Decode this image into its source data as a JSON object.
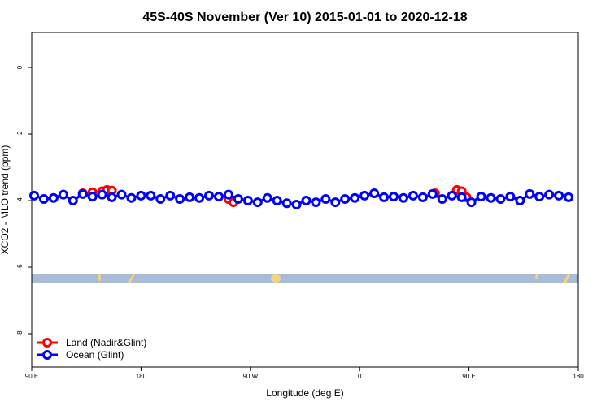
{
  "chart_data": {
    "type": "line",
    "title": "45S-40S November (Ver 10)   2015-01-01 to 2020-12-18",
    "x_label": "Longitude (deg E)",
    "y_label": "XCO2 - MLO trend (ppm)",
    "xlim": [
      90,
      540
    ],
    "ylim": [
      -9,
      1.05
    ],
    "xticks": [
      {
        "value": 90,
        "label": "90 E"
      },
      180,
      {
        "value": 270,
        "label": "90 W"
      },
      {
        "value": 360,
        "label": "0"
      },
      {
        "value": 450,
        "label": "90 E"
      },
      {
        "value": 540,
        "label": "180"
      }
    ],
    "yticks": [
      -8,
      -6,
      -4,
      -2,
      0
    ],
    "legend": "bottomleft",
    "series": [
      {
        "name": "Land (Nadir&Glint)",
        "color": "#ff0000",
        "x": [
          132,
          140,
          148,
          152,
          156,
          200,
          252,
          256,
          350,
          422,
          430,
          440,
          444,
          448
        ],
        "values": [
          -3.78,
          -3.75,
          -3.72,
          -3.68,
          -3.7,
          null,
          -3.95,
          -4.05,
          null,
          -3.78,
          null,
          -3.68,
          -3.72,
          -3.9
        ]
      },
      {
        "name": "Ocean (Glint)",
        "color": "#0000ff",
        "x": [
          92,
          100,
          108,
          116,
          124,
          132,
          140,
          148,
          156,
          164,
          172,
          180,
          188,
          196,
          204,
          212,
          220,
          228,
          236,
          244,
          252,
          260,
          268,
          276,
          284,
          292,
          300,
          308,
          316,
          324,
          332,
          340,
          348,
          356,
          364,
          372,
          380,
          388,
          396,
          404,
          412,
          420,
          428,
          436,
          444,
          452,
          460,
          468,
          476,
          484,
          492,
          500,
          508,
          516,
          524,
          532
        ],
        "values": [
          -3.85,
          -3.95,
          -3.92,
          -3.82,
          -4.0,
          -3.8,
          -3.88,
          -3.82,
          -3.9,
          -3.82,
          -3.92,
          -3.85,
          -3.85,
          -3.95,
          -3.85,
          -3.95,
          -3.9,
          -3.92,
          -3.85,
          -3.88,
          -3.82,
          -3.95,
          -4.0,
          -4.05,
          -3.92,
          -4.0,
          -4.08,
          -4.12,
          -4.0,
          -4.05,
          -3.95,
          -4.05,
          -3.95,
          -3.92,
          -3.85,
          -3.78,
          -3.9,
          -3.88,
          -3.92,
          -3.85,
          -3.9,
          -3.8,
          -3.95,
          -3.85,
          -3.9,
          -4.05,
          -3.88,
          -3.92,
          -3.95,
          -3.88,
          -4.0,
          -3.8,
          -3.88,
          -3.82,
          -3.85,
          -3.9
        ]
      }
    ]
  }
}
